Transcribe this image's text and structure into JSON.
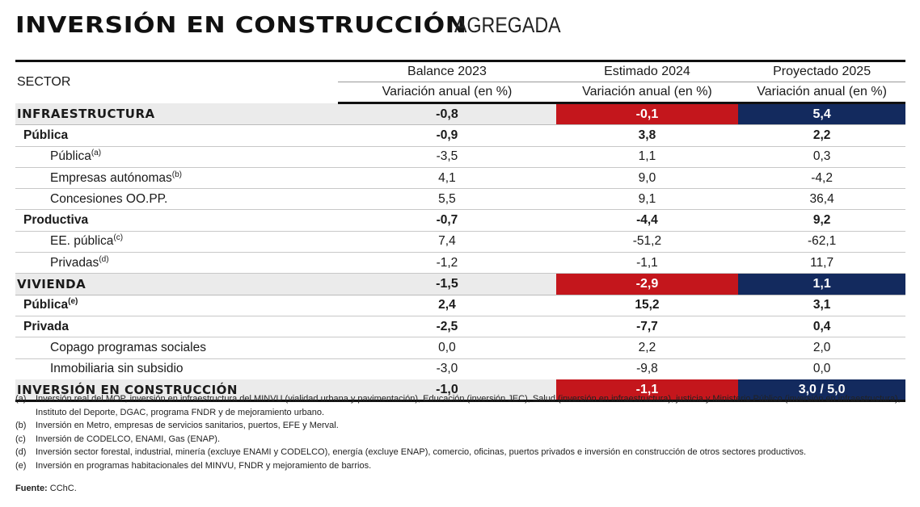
{
  "title": {
    "main": "INVERSIÓN EN CONSTRUCCIÓN",
    "sub": "AGREGADA"
  },
  "table": {
    "sector_label": "SECTOR",
    "columns": [
      {
        "title": "Balance 2023",
        "subtitle": "Variación anual (en %)"
      },
      {
        "title": "Estimado 2024",
        "subtitle": "Variación anual (en %)"
      },
      {
        "title": "Proyectado 2025",
        "subtitle": "Variación anual (en %)"
      }
    ],
    "rows": [
      {
        "label": "INFRAESTRUCTURA",
        "note": "",
        "level": 0,
        "values": [
          "-0,8",
          "-0,1",
          "5,4"
        ],
        "highlight": true
      },
      {
        "label": "Pública",
        "note": "",
        "level": 1,
        "values": [
          "-0,9",
          "3,8",
          "2,2"
        ]
      },
      {
        "label": "Pública",
        "note": "(a)",
        "level": 2,
        "values": [
          "-3,5",
          "1,1",
          "0,3"
        ]
      },
      {
        "label": "Empresas autónomas",
        "note": "(b)",
        "level": 2,
        "values": [
          "4,1",
          "9,0",
          "-4,2"
        ]
      },
      {
        "label": "Concesiones OO.PP.",
        "note": "",
        "level": 2,
        "values": [
          "5,5",
          "9,1",
          "36,4"
        ]
      },
      {
        "label": "Productiva",
        "note": "",
        "level": 1,
        "values": [
          "-0,7",
          "-4,4",
          "9,2"
        ]
      },
      {
        "label": "EE. pública",
        "note": "(c)",
        "level": 2,
        "values": [
          "7,4",
          "-51,2",
          "-62,1"
        ]
      },
      {
        "label": "Privadas",
        "note": "(d)",
        "level": 2,
        "values": [
          "-1,2",
          "-1,1",
          "11,7"
        ]
      },
      {
        "label": "VIVIENDA",
        "note": "",
        "level": 0,
        "values": [
          "-1,5",
          "-2,9",
          "1,1"
        ],
        "highlight": true
      },
      {
        "label": "Pública",
        "note": "(e)",
        "level": 1,
        "values": [
          "2,4",
          "15,2",
          "3,1"
        ]
      },
      {
        "label": "Privada",
        "note": "",
        "level": 1,
        "values": [
          "-2,5",
          "-7,7",
          "0,4"
        ]
      },
      {
        "label": "Copago programas sociales",
        "note": "",
        "level": 2,
        "values": [
          "0,0",
          "2,2",
          "2,0"
        ]
      },
      {
        "label": "Inmobiliaria sin subsidio",
        "note": "",
        "level": 2,
        "values": [
          "-3,0",
          "-9,8",
          "0,0"
        ]
      },
      {
        "label": "INVERSIÓN EN CONSTRUCCIÓN",
        "note": "",
        "level": 0,
        "values": [
          "-1,0",
          "-1,1",
          "3,0 / 5,0"
        ],
        "highlight": true
      }
    ]
  },
  "colors": {
    "red": "#c4161c",
    "navy": "#132a5e",
    "summary_bg": "#ebebeb"
  },
  "notes": [
    {
      "key": "(a)",
      "text": "Inversión real del MOP, inversión en infraestructura del MINVU (vialidad urbana y pavimentación), Educación (inversión JEC), Salud (inversión en infraestructura), justicia y Ministerio Público (inversión en infraestructura), Instituto del Deporte, DGAC, programa FNDR y de mejoramiento urbano."
    },
    {
      "key": "(b)",
      "text": "Inversión en Metro, empresas de servicios sanitarios, puertos, EFE y Merval."
    },
    {
      "key": "(c)",
      "text": "Inversión de CODELCO, ENAMI, Gas (ENAP)."
    },
    {
      "key": "(d)",
      "text": "Inversión sector forestal, industrial, minería (excluye ENAMI y CODELCO), energía (excluye ENAP), comercio, oficinas, puertos privados e inversión en construcción de otros sectores productivos."
    },
    {
      "key": "(e)",
      "text": "Inversión en programas habitacionales del MINVU, FNDR y mejoramiento de barrios."
    }
  ],
  "source": {
    "label": "Fuente:",
    "text": "CChC."
  }
}
